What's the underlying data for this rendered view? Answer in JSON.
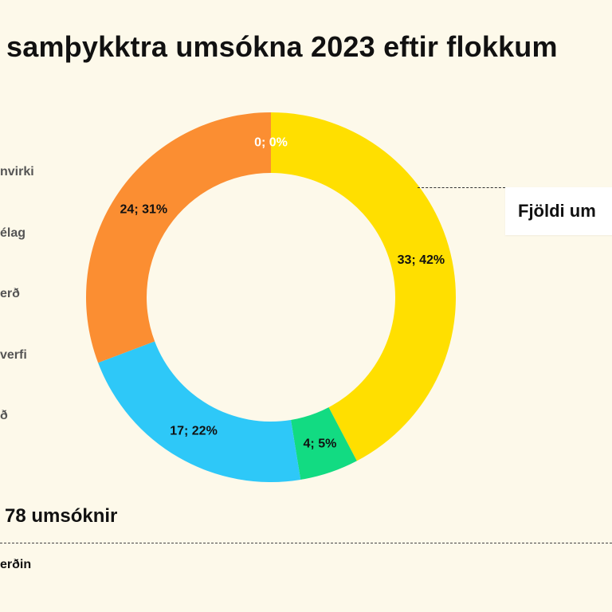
{
  "title": "samþykktra umsókna 2023 eftir flokkum",
  "legend": [
    "nvirki",
    "élag",
    "erð",
    "verfi",
    "ð"
  ],
  "callout": "Fjöldi um",
  "total": "78 umsóknir",
  "source": "erðin",
  "chart_data": {
    "type": "pie",
    "donut": true,
    "slices": [
      {
        "label": "0; 0%",
        "value": 0,
        "color": "#ffdf00"
      },
      {
        "label": "33; 42%",
        "value": 33,
        "color": "#ffdf00"
      },
      {
        "label": "4; 5%",
        "value": 4,
        "color": "#12db82"
      },
      {
        "label": "17; 22%",
        "value": 17,
        "color": "#2ec8f8"
      },
      {
        "label": "24; 31%",
        "value": 24,
        "color": "#fb8e32"
      }
    ],
    "label_colors": [
      "#ffffff",
      "#111111",
      "#111111",
      "#111111",
      "#111111"
    ]
  }
}
